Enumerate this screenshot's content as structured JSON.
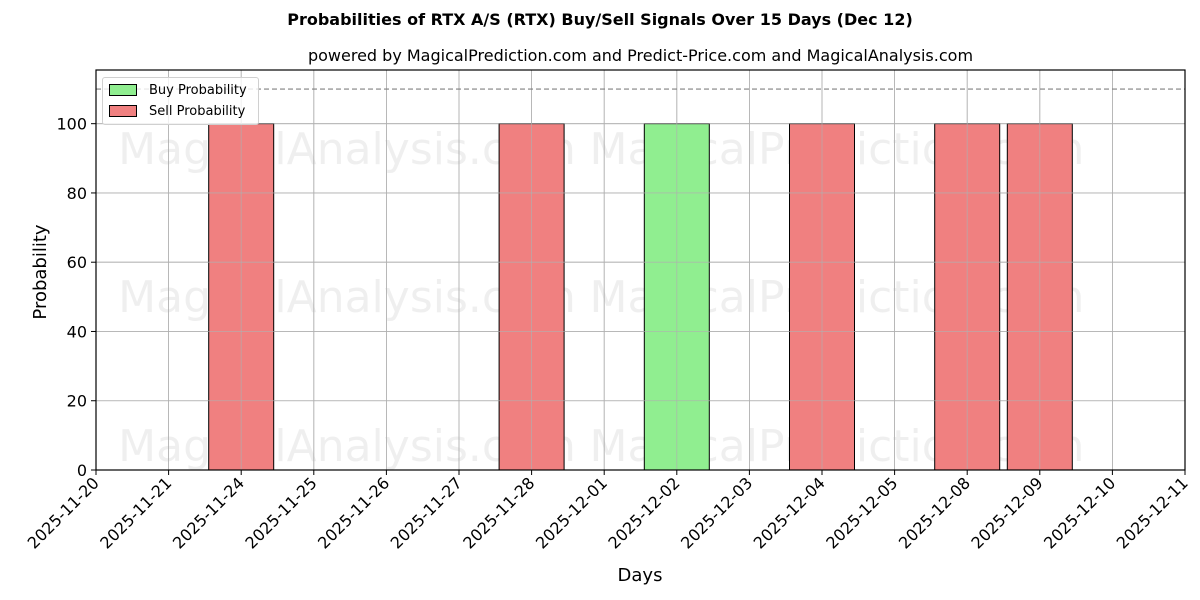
{
  "chart_data": {
    "type": "bar",
    "title": "Probabilities of RTX A/S (RTX) Buy/Sell Signals Over 15 Days (Dec 12)",
    "subtitle": "powered by MagicalPrediction.com and Predict-Price.com and MagicalAnalysis.com",
    "xlabel": "Days",
    "ylabel": "Probability",
    "ylim": [
      0,
      115.5
    ],
    "yticks": [
      0,
      20,
      40,
      60,
      80,
      100
    ],
    "grid": true,
    "legend_position": "upper left",
    "reference_line": {
      "y": 110,
      "style": "dashed",
      "color": "#808080"
    },
    "categories": [
      "2025-11-20",
      "2025-11-21",
      "2025-11-24",
      "2025-11-25",
      "2025-11-26",
      "2025-11-27",
      "2025-11-28",
      "2025-12-01",
      "2025-12-02",
      "2025-12-03",
      "2025-12-04",
      "2025-12-05",
      "2025-12-08",
      "2025-12-09",
      "2025-12-10",
      "2025-12-11"
    ],
    "series": [
      {
        "name": "Buy Probability",
        "color": "#90ee90",
        "values": [
          0,
          0,
          0,
          0,
          0,
          0,
          0,
          0,
          100,
          0,
          0,
          0,
          0,
          0,
          0,
          0
        ]
      },
      {
        "name": "Sell Probability",
        "color": "#f08080",
        "values": [
          0,
          0,
          100,
          0,
          0,
          0,
          100,
          0,
          0,
          0,
          100,
          0,
          100,
          100,
          0,
          0
        ]
      }
    ],
    "watermarks": [
      "MagicalAnalysis.com",
      "MagicalPrediction.com"
    ]
  },
  "legend": {
    "buy_label": "Buy Probability",
    "sell_label": "Sell Probability",
    "buy_color": "#90ee90",
    "sell_color": "#f08080"
  }
}
